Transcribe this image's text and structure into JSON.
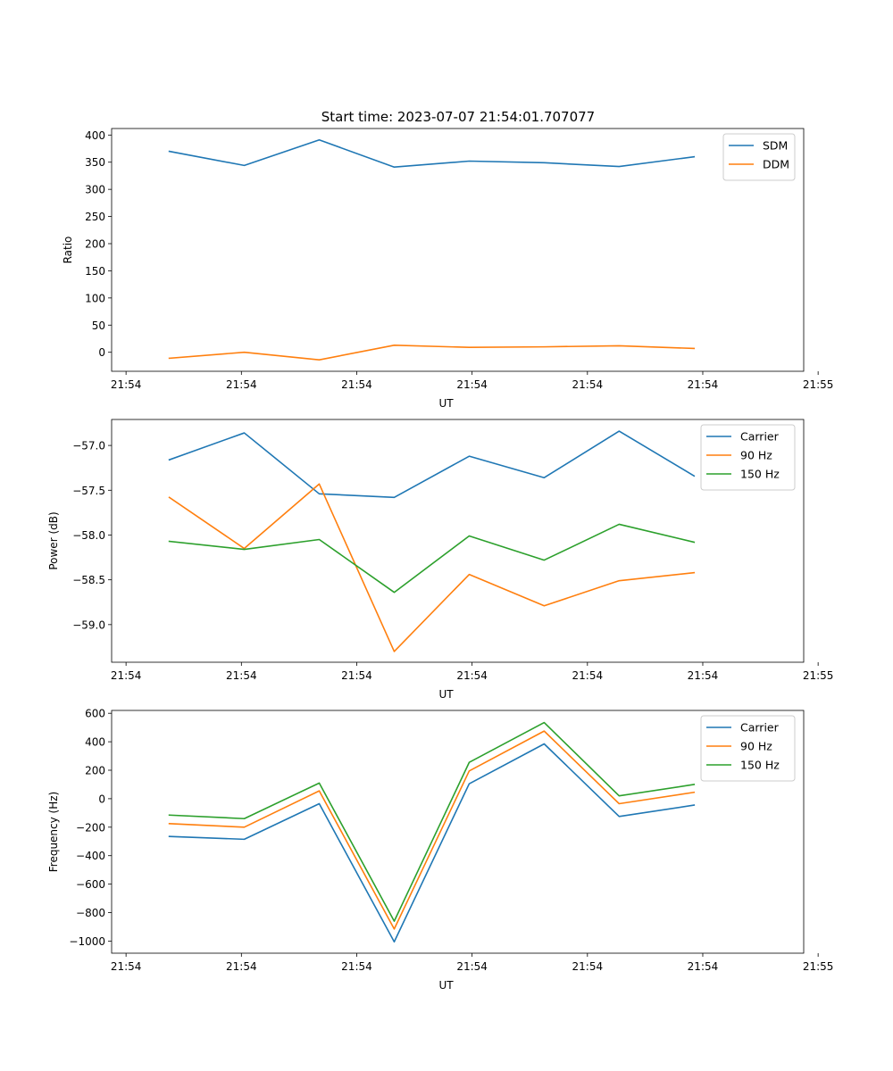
{
  "figure_title": "Start time: 2023-07-07 21:54:01.707077",
  "chart_data": [
    {
      "type": "line",
      "title": "Start time: 2023-07-07 21:54:01.707077",
      "xlabel": "UT",
      "ylabel": "Ratio",
      "xlim": [
        0,
        12
      ],
      "x": [
        1,
        2.3,
        3.6,
        4.9,
        6.2,
        7.5,
        8.8,
        10.1
      ],
      "x_ticks": [
        0.25,
        2.25,
        4.25,
        6.25,
        8.25,
        10.25,
        12.25
      ],
      "x_tick_labels": [
        "21:54",
        "21:54",
        "21:54",
        "21:54",
        "21:54",
        "21:54",
        "21:55"
      ],
      "ylim": [
        -35,
        412
      ],
      "y_ticks": [
        0,
        50,
        100,
        150,
        200,
        250,
        300,
        350,
        400
      ],
      "y_tick_labels": [
        "0",
        "50",
        "100",
        "150",
        "200",
        "250",
        "300",
        "350",
        "400"
      ],
      "legend": "top-right",
      "series": [
        {
          "name": "SDM",
          "color": "#1f77b4",
          "values": [
            370,
            344,
            391,
            341,
            352,
            349,
            342,
            360
          ]
        },
        {
          "name": "DDM",
          "color": "#ff7f0e",
          "values": [
            -11,
            0,
            -14,
            13,
            9,
            10,
            12,
            7
          ]
        }
      ]
    },
    {
      "type": "line",
      "xlabel": "UT",
      "ylabel": "Power (dB)",
      "xlim": [
        0,
        12
      ],
      "x": [
        1,
        2.3,
        3.6,
        4.9,
        6.2,
        7.5,
        8.8,
        10.1
      ],
      "x_ticks": [
        0.25,
        2.25,
        4.25,
        6.25,
        8.25,
        10.25,
        12.25
      ],
      "x_tick_labels": [
        "21:54",
        "21:54",
        "21:54",
        "21:54",
        "21:54",
        "21:54",
        "21:55"
      ],
      "ylim": [
        -59.42,
        -56.71
      ],
      "y_ticks": [
        -59.0,
        -58.5,
        -58.0,
        -57.5,
        -57.0
      ],
      "y_tick_labels": [
        "−59.0",
        "−58.5",
        "−58.0",
        "−57.5",
        "−57.0"
      ],
      "legend": "top-right",
      "series": [
        {
          "name": "Carrier",
          "color": "#1f77b4",
          "values": [
            -57.16,
            -56.86,
            -57.54,
            -57.58,
            -57.12,
            -57.36,
            -56.84,
            -57.34
          ]
        },
        {
          "name": "90 Hz",
          "color": "#ff7f0e",
          "values": [
            -57.58,
            -58.15,
            -57.43,
            -59.3,
            -58.44,
            -58.79,
            -58.51,
            -58.42
          ]
        },
        {
          "name": "150 Hz",
          "color": "#2ca02c",
          "values": [
            -58.07,
            -58.16,
            -58.05,
            -58.64,
            -58.01,
            -58.28,
            -57.88,
            -58.08
          ]
        }
      ]
    },
    {
      "type": "line",
      "xlabel": "UT",
      "ylabel": "Frequency (Hz)",
      "xlim": [
        0,
        12
      ],
      "x": [
        1,
        2.3,
        3.6,
        4.9,
        6.2,
        7.5,
        8.8,
        10.1
      ],
      "x_ticks": [
        0.25,
        2.25,
        4.25,
        6.25,
        8.25,
        10.25,
        12.25
      ],
      "x_tick_labels": [
        "21:54",
        "21:54",
        "21:54",
        "21:54",
        "21:54",
        "21:54",
        "21:55"
      ],
      "ylim": [
        -1085,
        620
      ],
      "y_ticks": [
        -1000,
        -800,
        -600,
        -400,
        -200,
        0,
        200,
        400,
        600
      ],
      "y_tick_labels": [
        "−1000",
        "−800",
        "−600",
        "−400",
        "−200",
        "0",
        "200",
        "400",
        "600"
      ],
      "legend": "top-right",
      "series": [
        {
          "name": "Carrier",
          "color": "#1f77b4",
          "values": [
            -265,
            -285,
            -35,
            -1005,
            105,
            385,
            -125,
            -45
          ]
        },
        {
          "name": "90 Hz",
          "color": "#ff7f0e",
          "values": [
            -175,
            -200,
            55,
            -915,
            195,
            475,
            -35,
            45
          ]
        },
        {
          "name": "150 Hz",
          "color": "#2ca02c",
          "values": [
            -115,
            -140,
            110,
            -860,
            255,
            535,
            20,
            100
          ]
        }
      ]
    }
  ]
}
